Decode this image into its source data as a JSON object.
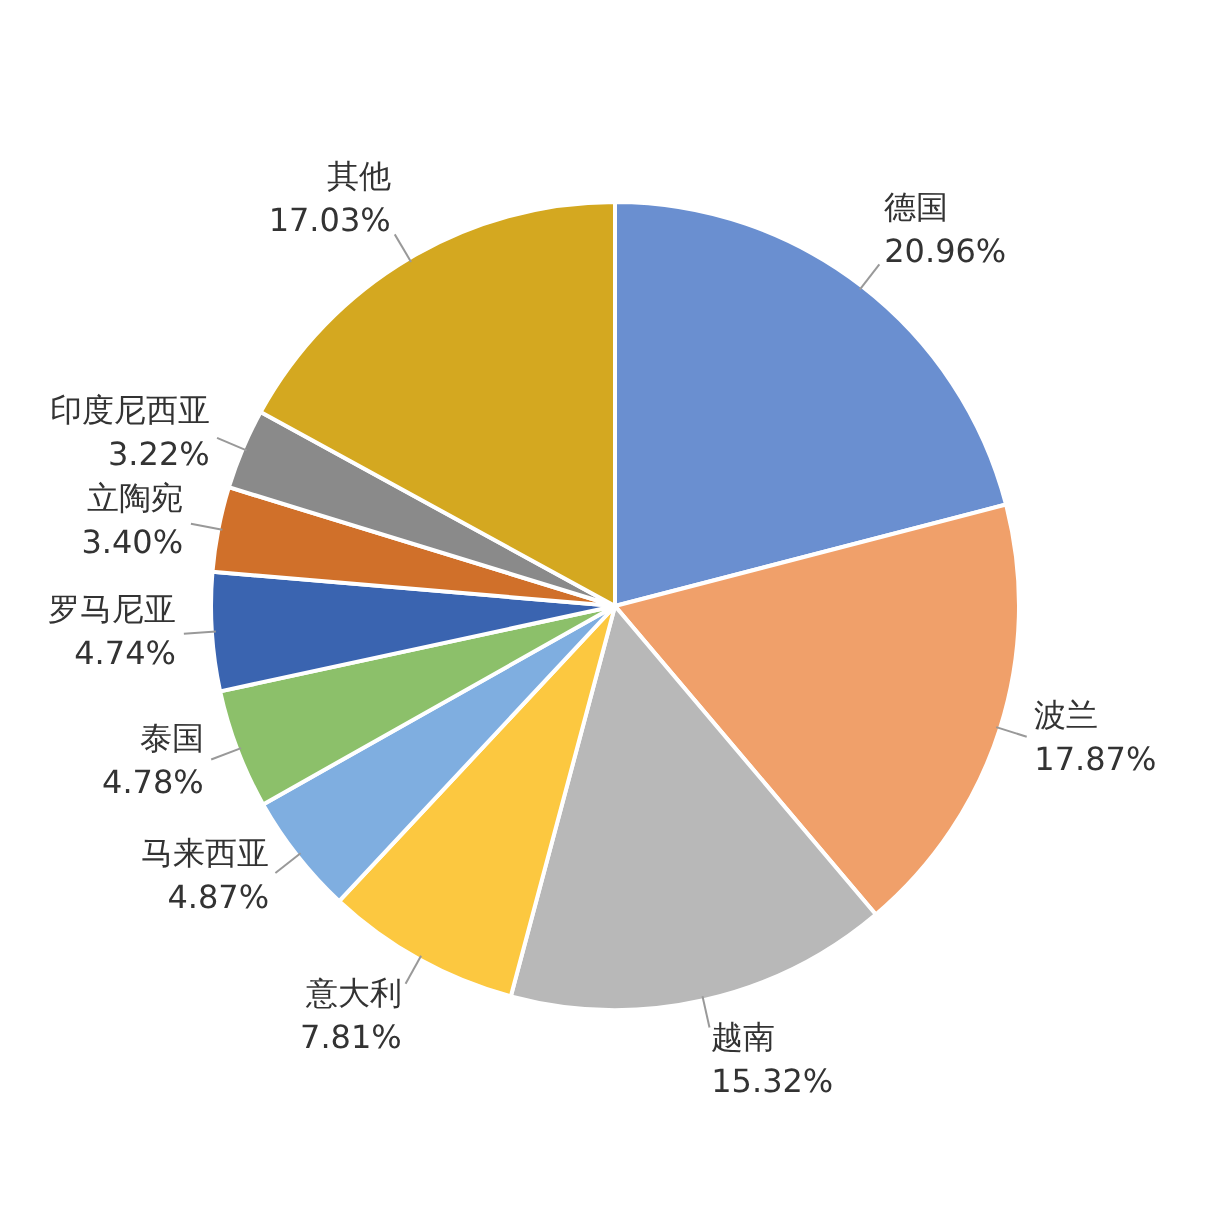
{
  "chart_data": {
    "type": "pie",
    "categories": [
      "德国",
      "波兰",
      "越南",
      "意大利",
      "马来西亚",
      "泰国",
      "罗马尼亚",
      "立陶宛",
      "印度尼西亚",
      "其他"
    ],
    "values": [
      20.96,
      17.87,
      15.32,
      7.81,
      4.87,
      4.78,
      4.74,
      3.4,
      3.22,
      17.03
    ],
    "value_labels": [
      "20.96%",
      "17.87%",
      "15.32%",
      "7.81%",
      "4.87%",
      "4.78%",
      "4.74%",
      "3.40%",
      "3.22%",
      "17.03%"
    ],
    "colors": [
      "#6a8fd0",
      "#f0a06a",
      "#b8b8b8",
      "#fcc840",
      "#7faee0",
      "#8cc06a",
      "#3a64b0",
      "#d0702a",
      "#8a8a8a",
      "#d4a820"
    ],
    "legend": false
  }
}
